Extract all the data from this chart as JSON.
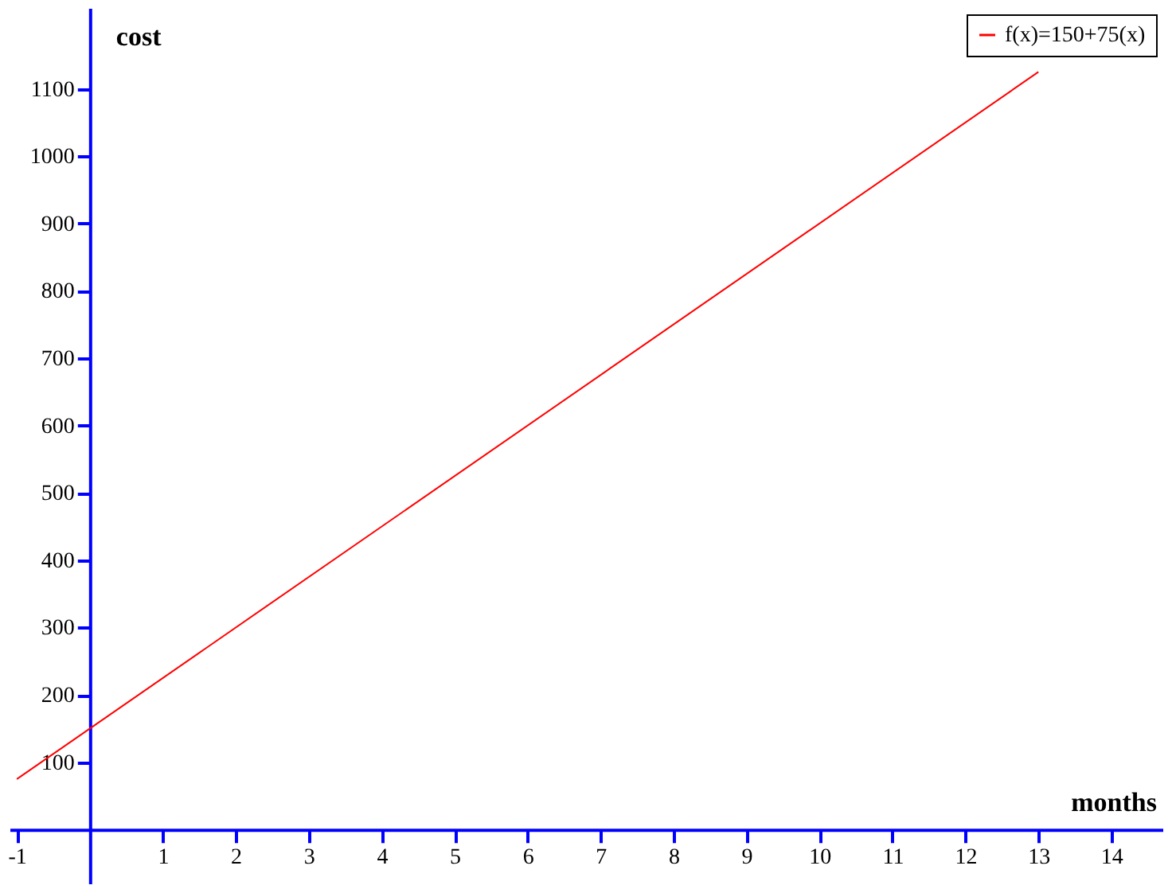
{
  "chart_data": {
    "type": "line",
    "xlabel": "months",
    "ylabel": "cost",
    "xlim": [
      -1.1,
      14.7
    ],
    "ylim": [
      -80,
      1220
    ],
    "xticks": [
      {
        "value": -1,
        "label": "-1"
      },
      1,
      2,
      3,
      4,
      5,
      6,
      7,
      8,
      9,
      10,
      11,
      12,
      13,
      14
    ],
    "yticks": [
      100,
      200,
      300,
      400,
      500,
      600,
      700,
      800,
      900,
      1000,
      1100
    ],
    "series": [
      {
        "name": "f(x)=150+75(x)",
        "color": "#ff0000",
        "x": [
          -1,
          13
        ],
        "values": [
          75,
          1125
        ]
      }
    ],
    "legend": "top right",
    "grid": false
  }
}
